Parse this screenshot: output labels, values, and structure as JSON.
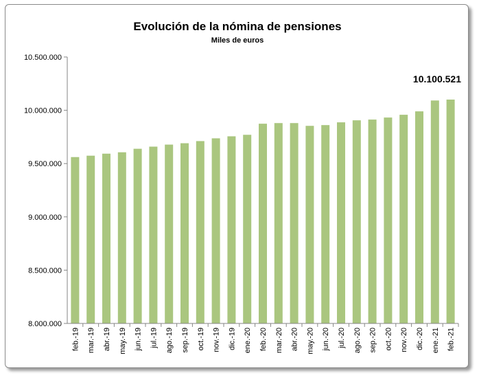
{
  "chart_data": {
    "type": "bar",
    "title": "Evolución de la nómina de pensiones",
    "subtitle": "Miles de euros",
    "xlabel": "",
    "ylabel": "",
    "ylim": [
      8000000,
      10500000
    ],
    "yticks": [
      "8.000.000",
      "8.500.000",
      "9.000.000",
      "9.500.000",
      "10.000.000",
      "10.500.000"
    ],
    "ytick_values": [
      8000000,
      8500000,
      9000000,
      9500000,
      10000000,
      10500000
    ],
    "grid": false,
    "bar_color": "#aac67f",
    "categories": [
      "feb.-19",
      "mar.-19",
      "abr.-19",
      "may.-19",
      "jun.-19",
      "jul.-19",
      "ago.-19",
      "sep.-19",
      "oct.-19",
      "nov.-19",
      "dic.-19",
      "ene.-20",
      "feb.-20",
      "mar.-20",
      "abr.-20",
      "may.-20",
      "jun.-20",
      "jul.-20",
      "ago.-20",
      "sep.-20",
      "oct.-20",
      "nov.-20",
      "dic.-20",
      "ene.-21",
      "feb.-21"
    ],
    "values": [
      9561000,
      9574000,
      9593000,
      9606000,
      9639000,
      9659000,
      9678000,
      9691000,
      9711000,
      9737000,
      9756000,
      9770000,
      9874000,
      9880000,
      9880000,
      9854000,
      9861000,
      9887000,
      9906000,
      9913000,
      9932000,
      9958000,
      9990000,
      10092000,
      10100521
    ],
    "annotation": {
      "category": "feb.-21",
      "text": "10.100.521"
    }
  }
}
